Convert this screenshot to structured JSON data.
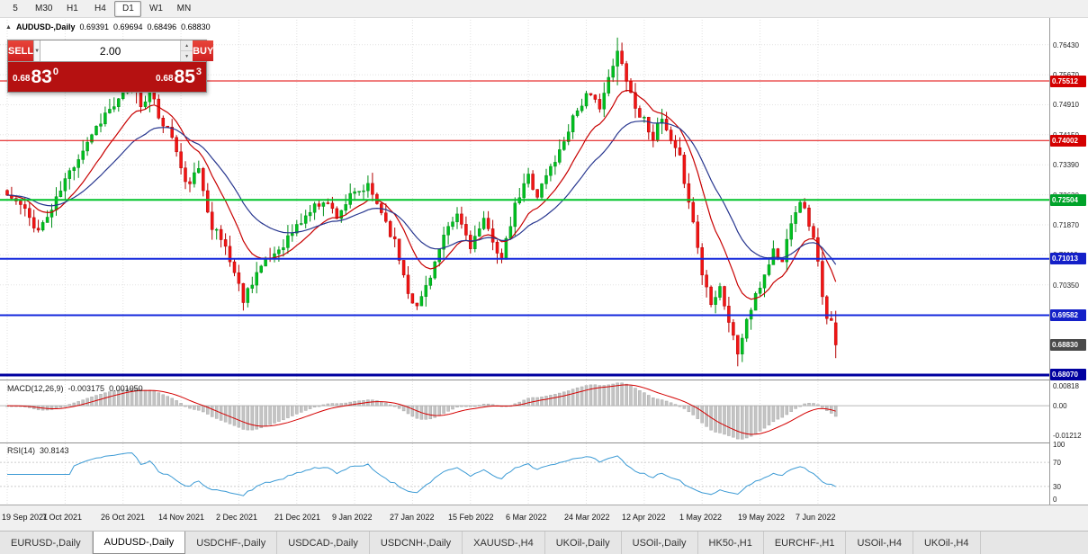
{
  "icons": {
    "collapse": "▲",
    "dropdown": "▼",
    "spinner_up": "▲",
    "spinner_down": "▼"
  },
  "toolbar": {
    "timeframes": [
      {
        "label": "5",
        "active": false
      },
      {
        "label": "M30",
        "active": false
      },
      {
        "label": "H1",
        "active": false
      },
      {
        "label": "H4",
        "active": false
      },
      {
        "label": "D1",
        "active": true
      },
      {
        "label": "W1",
        "active": false
      },
      {
        "label": "MN",
        "active": false
      }
    ]
  },
  "header": {
    "symbol": "AUDUSD-,Daily",
    "open": "0.69391",
    "high": "0.69694",
    "low": "0.68496",
    "close": "0.68830"
  },
  "trade": {
    "sell_label": "SELL",
    "buy_label": "BUY",
    "volume": "2.00",
    "sell_price": {
      "prefix": "0.68",
      "big": "83",
      "sup": "0"
    },
    "buy_price": {
      "prefix": "0.68",
      "big": "85",
      "sup": "3"
    }
  },
  "macd": {
    "label": "MACD(12,26,9)",
    "main": "-0.003175",
    "signal": "0.001050",
    "axis": [
      "0.00818",
      "0.00",
      "-0.01212"
    ]
  },
  "rsi": {
    "label": "RSI(14)",
    "value": "30.8143",
    "axis": [
      "100",
      "70",
      "30",
      "0"
    ]
  },
  "dates": [
    "19 Sep 2021",
    "7 Oct 2021",
    "26 Oct 2021",
    "14 Nov 2021",
    "2 Dec 2021",
    "21 Dec 2021",
    "9 Jan 2022",
    "27 Jan 2022",
    "15 Feb 2022",
    "6 Mar 2022",
    "24 Mar 2022",
    "12 Apr 2022",
    "1 May 2022",
    "19 May 2022",
    "7 Jun 2022"
  ],
  "tabs": [
    {
      "label": "EURUSD-,Daily",
      "active": false
    },
    {
      "label": "AUDUSD-,Daily",
      "active": true
    },
    {
      "label": "USDCHF-,Daily",
      "active": false
    },
    {
      "label": "USDCAD-,Daily",
      "active": false
    },
    {
      "label": "USDCNH-,Daily",
      "active": false
    },
    {
      "label": "XAUUSD-,H4",
      "active": false
    },
    {
      "label": "UKOil-,Daily",
      "active": false
    },
    {
      "label": "USOil-,Daily",
      "active": false
    },
    {
      "label": "HK50-,H1",
      "active": false
    },
    {
      "label": "EURCHF-,H1",
      "active": false
    },
    {
      "label": "USOil-,H4",
      "active": false
    },
    {
      "label": "UKOil-,H4",
      "active": false
    }
  ],
  "chart_data": {
    "type": "candlestick",
    "symbol": "AUDUSD",
    "timeframe": "Daily",
    "bars_total": 187,
    "bars_per_label": 13,
    "x_labels": [
      "19 Sep 2021",
      "7 Oct 2021",
      "26 Oct 2021",
      "14 Nov 2021",
      "2 Dec 2021",
      "21 Dec 2021",
      "9 Jan 2022",
      "27 Jan 2022",
      "15 Feb 2022",
      "6 Mar 2022",
      "24 Mar 2022",
      "12 Apr 2022",
      "1 May 2022",
      "19 May 2022",
      "7 Jun 2022"
    ],
    "view_high": 0.7706,
    "view_low": 0.67978,
    "anchors_close": [
      [
        0,
        0.7262
      ],
      [
        3,
        0.7236
      ],
      [
        7,
        0.7173
      ],
      [
        10,
        0.7225
      ],
      [
        13,
        0.73
      ],
      [
        16,
        0.736
      ],
      [
        19,
        0.7418
      ],
      [
        22,
        0.7468
      ],
      [
        25,
        0.7498
      ],
      [
        28,
        0.7546
      ],
      [
        30,
        0.7492
      ],
      [
        32,
        0.7526
      ],
      [
        34,
        0.7462
      ],
      [
        37,
        0.7412
      ],
      [
        40,
        0.7288
      ],
      [
        43,
        0.7322
      ],
      [
        46,
        0.7185
      ],
      [
        49,
        0.7132
      ],
      [
        53,
        0.7
      ],
      [
        56,
        0.7068
      ],
      [
        59,
        0.7102
      ],
      [
        62,
        0.714
      ],
      [
        65,
        0.7182
      ],
      [
        68,
        0.7222
      ],
      [
        71,
        0.7252
      ],
      [
        74,
        0.7212
      ],
      [
        77,
        0.7256
      ],
      [
        81,
        0.7282
      ],
      [
        84,
        0.7222
      ],
      [
        87,
        0.7142
      ],
      [
        90,
        0.7022
      ],
      [
        92,
        0.6976
      ],
      [
        95,
        0.7062
      ],
      [
        98,
        0.7152
      ],
      [
        101,
        0.7212
      ],
      [
        104,
        0.7136
      ],
      [
        107,
        0.7192
      ],
      [
        109,
        0.7152
      ],
      [
        111,
        0.7096
      ],
      [
        114,
        0.7232
      ],
      [
        117,
        0.7312
      ],
      [
        119,
        0.7262
      ],
      [
        121,
        0.7312
      ],
      [
        124,
        0.7372
      ],
      [
        127,
        0.7462
      ],
      [
        130,
        0.7512
      ],
      [
        133,
        0.7492
      ],
      [
        135,
        0.7552
      ],
      [
        137,
        0.7622
      ],
      [
        139,
        0.7562
      ],
      [
        141,
        0.7482
      ],
      [
        143,
        0.7452
      ],
      [
        145,
        0.7412
      ],
      [
        147,
        0.7452
      ],
      [
        149,
        0.7392
      ],
      [
        151,
        0.7352
      ],
      [
        153,
        0.7252
      ],
      [
        155,
        0.7132
      ],
      [
        156,
        0.7062
      ],
      [
        158,
        0.6996
      ],
      [
        160,
        0.7032
      ],
      [
        162,
        0.6942
      ],
      [
        164,
        0.6862
      ],
      [
        166,
        0.6946
      ],
      [
        168,
        0.7002
      ],
      [
        170,
        0.7062
      ],
      [
        172,
        0.7122
      ],
      [
        174,
        0.7092
      ],
      [
        176,
        0.7202
      ],
      [
        178,
        0.7252
      ],
      [
        180,
        0.7192
      ],
      [
        182,
        0.7102
      ],
      [
        183,
        0.7002
      ],
      [
        184,
        0.6942
      ],
      [
        185,
        0.6939
      ],
      [
        186,
        0.6883
      ]
    ],
    "last_bar_ohlc": [
      0.69391,
      0.69694,
      0.68496,
      0.6883
    ],
    "wick_overrides": {
      "137": [
        0.7661,
        0.754
      ],
      "164": [
        0.6905,
        0.6829
      ]
    },
    "noise_amp": 0.0012,
    "wick_amp": 0.0028,
    "seed": 11,
    "price_ticks": [
      "0.76430",
      "0.75670",
      "0.74910",
      "0.74150",
      "0.73390",
      "0.72630",
      "0.71870",
      "0.71110",
      "0.70350",
      "0.69590"
    ],
    "levels": [
      {
        "price": 0.75512,
        "color": "#e00000",
        "width": 1,
        "badge": "0.75512",
        "badge_bg": "#d40000"
      },
      {
        "price": 0.74002,
        "color": "#e00000",
        "width": 1,
        "badge": "0.74002",
        "badge_bg": "#d40000"
      },
      {
        "price": 0.72504,
        "color": "#00c32a",
        "width": 2,
        "badge": "0.72504",
        "badge_bg": "#00a32a"
      },
      {
        "price": 0.71013,
        "color": "#1428dc",
        "width": 2,
        "badge": "0.71013",
        "badge_bg": "#1420c8"
      },
      {
        "price": 0.69582,
        "color": "#1428dc",
        "width": 2,
        "badge": "0.69582",
        "badge_bg": "#1420c8"
      },
      {
        "price": 0.6807,
        "color": "#0000a0",
        "width": 3,
        "badge": "0.68070",
        "badge_bg": "#0000a0"
      }
    ],
    "current_badge": {
      "price": 0.6883,
      "label": "0.68830",
      "bg": "#4a4a4a"
    },
    "overlays": [
      {
        "name": "EMA12",
        "color": "#c80000"
      },
      {
        "name": "EMA26",
        "color": "#27368f"
      }
    ],
    "macd": {
      "fast": 12,
      "slow": 26,
      "signal": 9,
      "scale_max": 0.0095,
      "scale_min": -0.0145,
      "hist_color": "#c4c4c4",
      "hist_stroke": "#a8a8a8",
      "signal_color": "#d40000"
    },
    "rsi": {
      "period": 14,
      "levels": [
        70,
        30
      ],
      "color": "#3d9bd5"
    },
    "colors": {
      "up_fill": "#00c020",
      "up_stroke": "#008f18",
      "down_fill": "#f21515",
      "down_stroke": "#b40000",
      "grid": "#e2e2e2",
      "splitter": "#8f8f8f"
    }
  }
}
